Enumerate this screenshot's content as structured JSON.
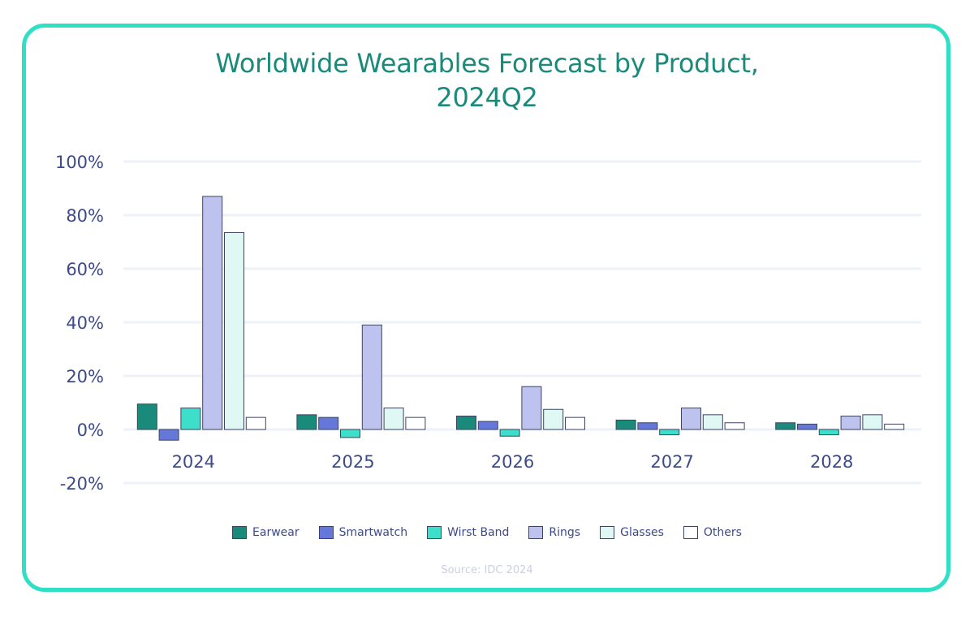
{
  "title_line1": "Worldwide Wearables Forecast by Product,",
  "title_line2": "2024Q2",
  "source": "Source: IDC 2024",
  "chart_data": {
    "type": "bar",
    "categories": [
      "2024",
      "2025",
      "2026",
      "2027",
      "2028"
    ],
    "series": [
      {
        "name": "Earwear",
        "color": "#1a8a7a",
        "values": [
          9.5,
          5.5,
          5.0,
          3.5,
          2.5
        ]
      },
      {
        "name": "Smartwatch",
        "color": "#6577d8",
        "values": [
          -4.0,
          4.5,
          3.0,
          2.5,
          2.0
        ]
      },
      {
        "name": "Wirst Band",
        "color": "#3ddfcb",
        "values": [
          8.0,
          -3.0,
          -2.5,
          -2.0,
          -2.0
        ]
      },
      {
        "name": "Rings",
        "color": "#bdc2ef",
        "values": [
          87.0,
          39.0,
          16.0,
          8.0,
          5.0
        ]
      },
      {
        "name": "Glasses",
        "color": "#dff8f4",
        "values": [
          73.5,
          8.0,
          7.5,
          5.5,
          5.5
        ]
      },
      {
        "name": "Others",
        "color": "#ffffff",
        "values": [
          4.5,
          4.5,
          4.5,
          2.5,
          2.0
        ]
      }
    ],
    "y_ticks": [
      "100%",
      "80%",
      "60%",
      "40%",
      "20%",
      "0%",
      "-20%"
    ],
    "ylim": [
      -20,
      100
    ],
    "grid": true,
    "legend_position": "bottom"
  }
}
